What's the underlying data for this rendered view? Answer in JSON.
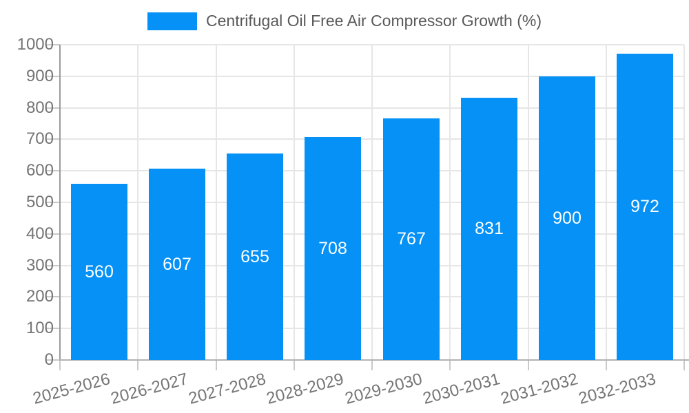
{
  "chart_data": {
    "type": "bar",
    "title": "Centrifugal Oil Free Air Compressor Growth (%)",
    "legend_position": "top",
    "categories": [
      "2025-2026",
      "2026-2027",
      "2027-2028",
      "2028-2029",
      "2029-2030",
      "2030-2031",
      "2031-2032",
      "2032-2033"
    ],
    "series": [
      {
        "name": "Centrifugal Oil Free Air Compressor Growth (%)",
        "values": [
          560,
          607,
          655,
          708,
          767,
          831,
          900,
          972
        ]
      }
    ],
    "value_labels_shown": true,
    "xlabel": "",
    "ylabel": "",
    "ylim": [
      0,
      1000
    ],
    "ytick_step": 100,
    "yticks": [
      0,
      100,
      200,
      300,
      400,
      500,
      600,
      700,
      800,
      900,
      1000
    ],
    "grid": true,
    "x_label_rotation_deg": -15,
    "colors": {
      "bar": "#0591F5",
      "value_label": "#FFFFFF",
      "axis_text": "#757575",
      "legend_text": "#595959",
      "gridline": "#E6E6E6",
      "tick": "#C9C9C9",
      "y_axis_line": "#9B9B9B",
      "x_axis_line": "#B2B2B2",
      "background": "#FFFFFF"
    }
  }
}
